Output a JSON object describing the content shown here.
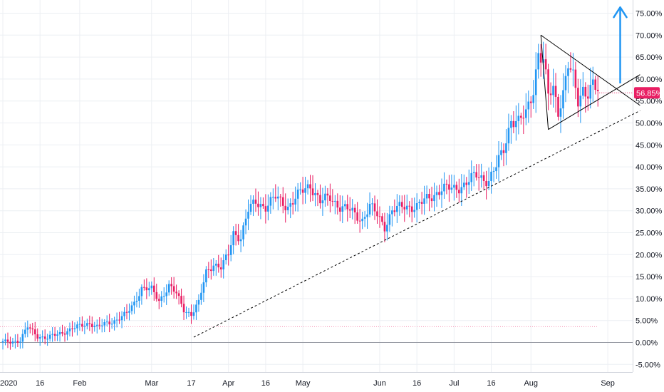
{
  "chart_data": {
    "type": "candlestick",
    "title": "",
    "xlabel": "",
    "ylabel": "",
    "y_unit": "%",
    "ylim": [
      -6.5,
      77
    ],
    "grid": true,
    "colors": {
      "up": "#2196f3",
      "down": "#e91e63",
      "grid": "#eceff3",
      "axis_text": "#131722",
      "pattern": "#000000",
      "arrow": "#2196f3"
    },
    "y_ticks": [
      "75.00%",
      "70.00%",
      "65.00%",
      "60.00%",
      "55.00%",
      "50.00%",
      "45.00%",
      "40.00%",
      "35.00%",
      "30.00%",
      "25.00%",
      "20.00%",
      "15.00%",
      "10.00%",
      "5.00%",
      "0.00%",
      "-5.00%"
    ],
    "y_tick_values": [
      75,
      70,
      65,
      60,
      55,
      50,
      45,
      40,
      35,
      30,
      25,
      20,
      15,
      10,
      5,
      0,
      -5
    ],
    "x_ticks": [
      "2020",
      "16",
      "Feb",
      "Mar",
      "17",
      "Apr",
      "16",
      "May",
      "Jun",
      "16",
      "Jul",
      "16",
      "Aug",
      "Sep"
    ],
    "x_tick_days": [
      0,
      15,
      31,
      60,
      76,
      91,
      106,
      121,
      152,
      167,
      182,
      197,
      213,
      244
    ],
    "last_value": 56.85,
    "last_value_label": "56.85%",
    "zero_line": 0,
    "reference_level": 3.6,
    "closes": [
      {
        "day": 0,
        "close": 0
      },
      {
        "day": 7,
        "close": 0.5
      },
      {
        "day": 10,
        "close": 3.5
      },
      {
        "day": 14,
        "close": 1.5
      },
      {
        "day": 18,
        "close": 1
      },
      {
        "day": 25,
        "close": 2.5
      },
      {
        "day": 35,
        "close": 4.5
      },
      {
        "day": 38,
        "close": 3.5
      },
      {
        "day": 45,
        "close": 5
      },
      {
        "day": 50,
        "close": 6.5
      },
      {
        "day": 53,
        "close": 9
      },
      {
        "day": 56,
        "close": 12.5
      },
      {
        "day": 60,
        "close": 12
      },
      {
        "day": 63,
        "close": 9.5
      },
      {
        "day": 67,
        "close": 13
      },
      {
        "day": 70,
        "close": 11
      },
      {
        "day": 73,
        "close": 7.5
      },
      {
        "day": 76,
        "close": 6.5
      },
      {
        "day": 79,
        "close": 9
      },
      {
        "day": 82,
        "close": 16
      },
      {
        "day": 85,
        "close": 18
      },
      {
        "day": 88,
        "close": 17
      },
      {
        "day": 91,
        "close": 20
      },
      {
        "day": 93,
        "close": 25
      },
      {
        "day": 96,
        "close": 24
      },
      {
        "day": 99,
        "close": 30
      },
      {
        "day": 102,
        "close": 32
      },
      {
        "day": 106,
        "close": 31
      },
      {
        "day": 110,
        "close": 33
      },
      {
        "day": 115,
        "close": 31
      },
      {
        "day": 120,
        "close": 34
      },
      {
        "day": 124,
        "close": 36
      },
      {
        "day": 128,
        "close": 32
      },
      {
        "day": 132,
        "close": 33
      },
      {
        "day": 136,
        "close": 31
      },
      {
        "day": 140,
        "close": 30
      },
      {
        "day": 145,
        "close": 28
      },
      {
        "day": 148,
        "close": 31
      },
      {
        "day": 151,
        "close": 29
      },
      {
        "day": 154,
        "close": 26.5
      },
      {
        "day": 157,
        "close": 30
      },
      {
        "day": 162,
        "close": 31
      },
      {
        "day": 167,
        "close": 31
      },
      {
        "day": 172,
        "close": 33
      },
      {
        "day": 177,
        "close": 35
      },
      {
        "day": 182,
        "close": 35
      },
      {
        "day": 186,
        "close": 36
      },
      {
        "day": 191,
        "close": 38
      },
      {
        "day": 196,
        "close": 37
      },
      {
        "day": 199,
        "close": 40
      },
      {
        "day": 202,
        "close": 44
      },
      {
        "day": 205,
        "close": 51
      },
      {
        "day": 208,
        "close": 50
      },
      {
        "day": 211,
        "close": 52
      },
      {
        "day": 214,
        "close": 58
      },
      {
        "day": 216,
        "close": 66
      },
      {
        "day": 218,
        "close": 64
      },
      {
        "day": 220,
        "close": 56
      },
      {
        "day": 222,
        "close": 58
      },
      {
        "day": 224,
        "close": 53
      },
      {
        "day": 226,
        "close": 57
      },
      {
        "day": 228,
        "close": 63
      },
      {
        "day": 230,
        "close": 60
      },
      {
        "day": 232,
        "close": 55
      },
      {
        "day": 234,
        "close": 58
      },
      {
        "day": 236,
        "close": 57
      },
      {
        "day": 238,
        "close": 58.5
      },
      {
        "day": 240,
        "close": 56.85
      }
    ],
    "support_line": {
      "from": {
        "day": 77,
        "value": 1.2
      },
      "to": {
        "day": 257,
        "value": 52.8
      }
    },
    "triangle": {
      "upper": {
        "from": {
          "day": 217,
          "value": 70
        },
        "to": {
          "day": 257,
          "value": 54
        }
      },
      "lower": {
        "from": {
          "day": 220,
          "value": 48.5
        },
        "to": {
          "day": 257,
          "value": 61
        }
      }
    },
    "breakout_arrow": {
      "day": 249,
      "from_value": 59,
      "to_value": 77
    }
  }
}
